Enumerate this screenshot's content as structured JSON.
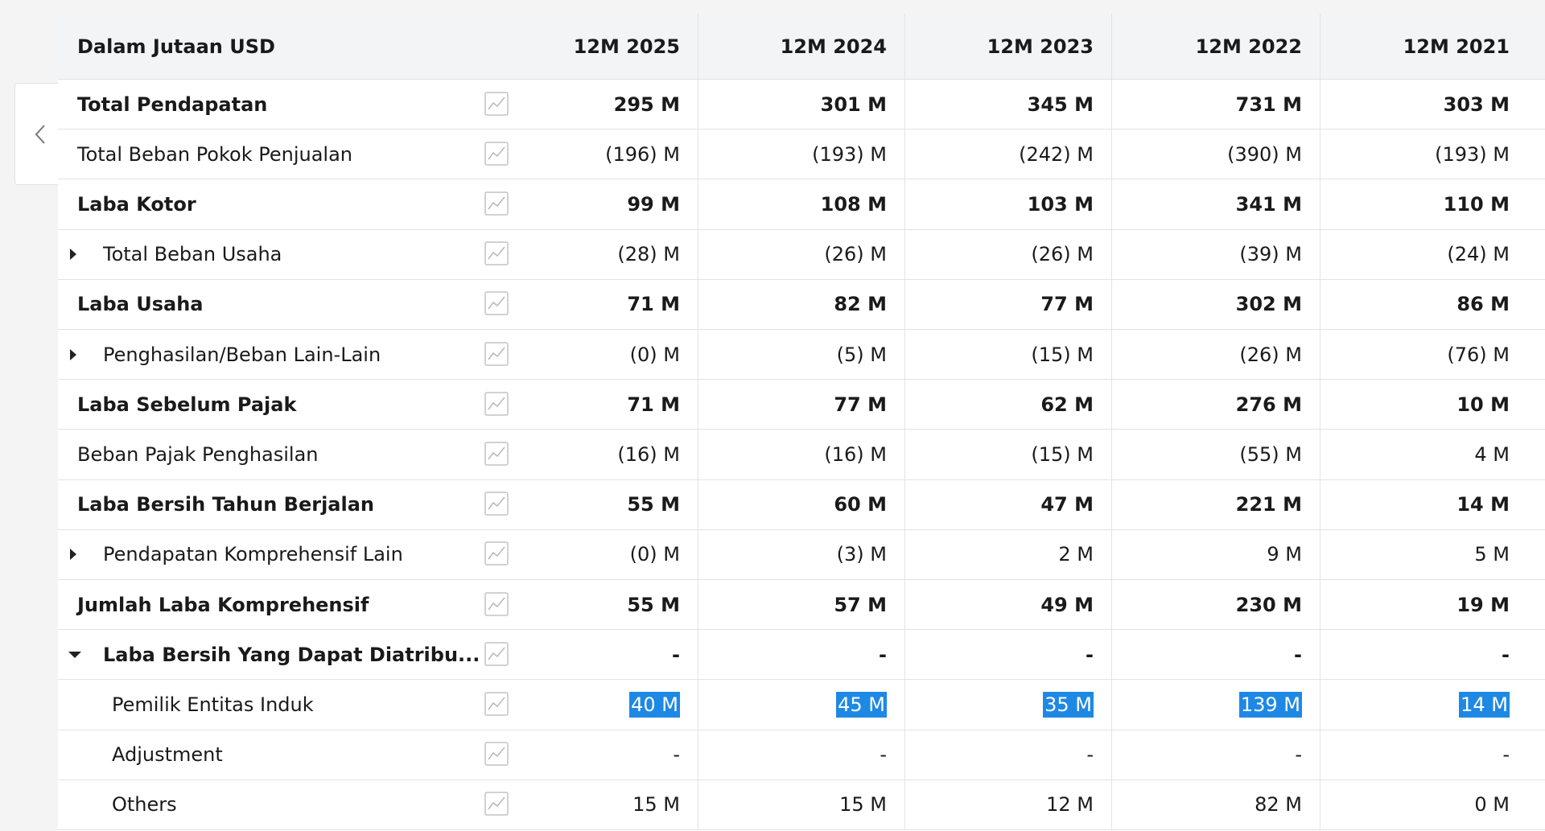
{
  "table": {
    "header": [
      "Dalam Jutaan USD",
      "12M 2025",
      "12M 2024",
      "12M 2023",
      "12M 2022",
      "12M 2021"
    ],
    "rows": [
      [
        "Total Pendapatan",
        "295 M",
        "301 M",
        "345 M",
        "731 M",
        "303 M"
      ],
      [
        "Total Beban Pokok Penjualan",
        "(196) M",
        "(193) M",
        "(242) M",
        "(390) M",
        "(193) M"
      ],
      [
        "Laba Kotor",
        "99 M",
        "108 M",
        "103 M",
        "341 M",
        "110 M"
      ],
      [
        "Total Beban Usaha",
        "(28) M",
        "(26) M",
        "(26) M",
        "(39) M",
        "(24) M"
      ],
      [
        "Laba Usaha",
        "71 M",
        "82 M",
        "77 M",
        "302 M",
        "86 M"
      ],
      [
        "Penghasilan/Beban Lain-Lain",
        "(0) M",
        "(5) M",
        "(15) M",
        "(26) M",
        "(76) M"
      ],
      [
        "Laba Sebelum Pajak",
        "71 M",
        "77 M",
        "62 M",
        "276 M",
        "10 M"
      ],
      [
        "Beban Pajak Penghasilan",
        "(16) M",
        "(16) M",
        "(15) M",
        "(55) M",
        "4 M"
      ],
      [
        "Laba Bersih Tahun Berjalan",
        "55 M",
        "60 M",
        "47 M",
        "221 M",
        "14 M"
      ],
      [
        "Pendapatan Komprehensif Lain",
        "(0) M",
        "(3) M",
        "2 M",
        "9 M",
        "5 M"
      ],
      [
        "Jumlah Laba Komprehensif",
        "55 M",
        "57 M",
        "49 M",
        "230 M",
        "19 M"
      ],
      [
        "Laba Bersih Yang Dapat Diatribu...",
        "-",
        "-",
        "-",
        "-",
        "-"
      ],
      [
        "Pemilik Entitas Induk",
        "40 M",
        "45 M",
        "35 M",
        "139 M",
        "14 M"
      ],
      [
        "Adjustment",
        "-",
        "-",
        "-",
        "-",
        "-"
      ],
      [
        "Others",
        "15 M",
        "15 M",
        "12 M",
        "82 M",
        "0 M"
      ]
    ]
  }
}
